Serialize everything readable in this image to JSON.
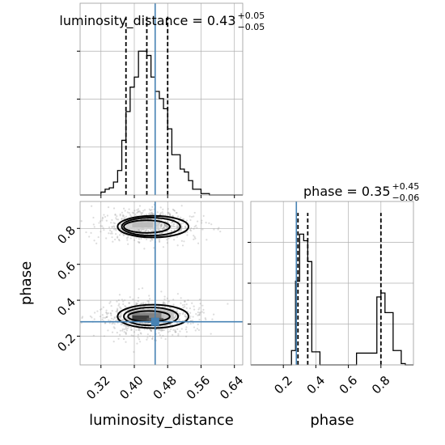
{
  "chart_data": [
    {
      "type": "histogram",
      "parameter": "luminosity_distance",
      "title": "luminosity_distance = 0.43",
      "title_main": "luminosity_distance = 0.43",
      "title_plus": "+0.05",
      "title_minus": "−0.05",
      "xlim": [
        0.27,
        0.66
      ],
      "bin_edges": [
        0.27,
        0.28,
        0.29,
        0.3,
        0.31,
        0.32,
        0.33,
        0.34,
        0.35,
        0.36,
        0.37,
        0.38,
        0.39,
        0.4,
        0.41,
        0.42,
        0.43,
        0.44,
        0.45,
        0.46,
        0.47,
        0.48,
        0.49,
        0.5,
        0.51,
        0.52,
        0.53,
        0.54,
        0.55,
        0.56,
        0.57,
        0.58,
        0.59,
        0.6,
        0.61,
        0.62,
        0.63,
        0.64,
        0.65,
        0.66
      ],
      "counts": [
        0,
        0,
        0,
        0,
        0,
        2,
        4,
        5,
        9,
        17,
        38,
        58,
        75,
        82,
        100,
        100,
        97,
        82,
        72,
        67,
        60,
        46,
        28,
        28,
        18,
        16,
        10,
        4,
        4,
        1,
        1,
        0,
        0,
        0,
        0,
        0,
        0,
        0,
        0
      ],
      "quantile_lines": [
        0.38,
        0.43,
        0.48
      ],
      "truth": 0.45,
      "show_yticklabels": false,
      "grid": true
    },
    {
      "type": "histogram",
      "parameter": "phase",
      "title": "phase = 0.35",
      "title_main": "phase = 0.35",
      "title_plus": "+0.45",
      "title_minus": "−0.06",
      "xlim": [
        0.0,
        1.0
      ],
      "bin_edges": [
        0.0,
        0.025,
        0.05,
        0.075,
        0.1,
        0.125,
        0.15,
        0.175,
        0.2,
        0.225,
        0.25,
        0.275,
        0.3,
        0.325,
        0.35,
        0.375,
        0.4,
        0.425,
        0.45,
        0.475,
        0.5,
        0.525,
        0.55,
        0.575,
        0.6,
        0.625,
        0.65,
        0.675,
        0.7,
        0.725,
        0.75,
        0.775,
        0.8,
        0.825,
        0.85,
        0.875,
        0.9,
        0.925,
        0.95,
        0.975,
        1.0
      ],
      "counts": [
        0,
        0,
        0,
        0,
        0,
        0,
        0,
        0,
        0,
        0,
        11,
        64,
        100,
        95,
        79,
        10,
        10,
        0,
        0,
        0,
        0,
        0,
        0,
        0,
        0,
        0,
        9,
        9,
        9,
        9,
        9,
        52,
        55,
        40,
        40,
        11,
        11,
        1,
        0,
        0
      ],
      "quantile_lines": [
        0.29,
        0.35,
        0.8
      ],
      "truth": 0.28,
      "xticks": [
        0.2,
        0.4,
        0.6,
        0.8
      ],
      "xticklabels": [
        "0.2",
        "0.4",
        "0.6",
        "0.8"
      ],
      "xlabel": "phase",
      "show_yticklabels": false,
      "grid": true
    },
    {
      "type": "scatter_density_2d",
      "x_parameter": "luminosity_distance",
      "y_parameter": "phase",
      "xlim": [
        0.27,
        0.66
      ],
      "ylim": [
        0.04,
        0.95
      ],
      "xticks": [
        0.32,
        0.4,
        0.48,
        0.56,
        0.64
      ],
      "xticklabels": [
        "0.32",
        "0.40",
        "0.48",
        "0.56",
        "0.64"
      ],
      "yticks": [
        0.2,
        0.4,
        0.6,
        0.8
      ],
      "yticklabels": [
        "0.2",
        "0.4",
        "0.6",
        "0.8"
      ],
      "xlabel": "luminosity_distance",
      "ylabel": "phase",
      "truth": {
        "x": 0.45,
        "y": 0.28
      },
      "clusters": [
        {
          "center_x": 0.43,
          "center_y": 0.82,
          "spread_x": 0.05,
          "spread_y": 0.045
        },
        {
          "center_x": 0.44,
          "center_y": 0.3,
          "spread_x": 0.05,
          "spread_y": 0.05
        }
      ],
      "contours": [
        {
          "level": "inner",
          "upper": {
            "cx": 0.43,
            "cy": 0.81,
            "rx": 0.055,
            "ry": 0.035
          },
          "lower": {
            "cx": 0.435,
            "cy": 0.31,
            "rx": 0.05,
            "ry": 0.03
          }
        },
        {
          "level": "middle",
          "upper": {
            "cx": 0.44,
            "cy": 0.81,
            "rx": 0.07,
            "ry": 0.05
          },
          "lower": {
            "cx": 0.44,
            "cy": 0.31,
            "rx": 0.065,
            "ry": 0.05
          }
        },
        {
          "level": "outer",
          "upper": {
            "cx": 0.445,
            "cy": 0.81,
            "rx": 0.085,
            "ry": 0.06
          },
          "lower": {
            "cx": 0.445,
            "cy": 0.31,
            "rx": 0.085,
            "ry": 0.065
          }
        }
      ],
      "grid": true
    }
  ],
  "colors": {
    "truth": "#4682b4",
    "line": "#000000",
    "grid": "#b0b0b0",
    "scatter": "#9a9a9a",
    "density_dark": "#222222"
  }
}
